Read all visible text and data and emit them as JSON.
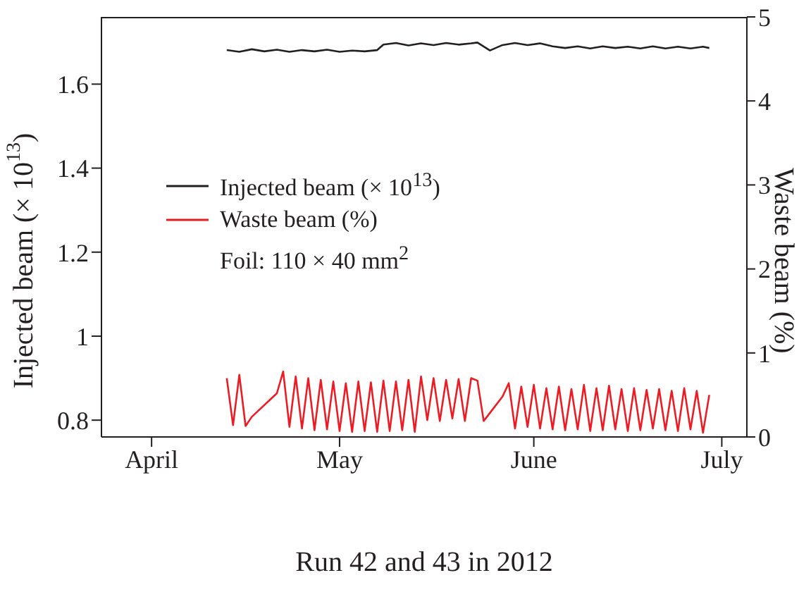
{
  "chart_data": {
    "type": "line",
    "xlabel": "Run 42 and 43 in 2012",
    "ylabel": "Injected beam (× 10$^{13}$)",
    "y2label": "Waste beam (%)",
    "xlim": [
      "2012-03-24",
      "2012-07-05"
    ],
    "xticks": [
      {
        "value": "2012-04-01",
        "label": "April"
      },
      {
        "value": "2012-05-01",
        "label": "May"
      },
      {
        "value": "2012-06-01",
        "label": "June"
      },
      {
        "value": "2012-07-01",
        "label": "July"
      }
    ],
    "ylim": [
      0.76,
      1.76
    ],
    "yticks": [
      0.8,
      1,
      1.2,
      1.4,
      1.6
    ],
    "y2lim": [
      0,
      5
    ],
    "y2ticks": [
      0,
      1,
      2,
      3,
      4,
      5
    ],
    "legend": "left",
    "marker": "none",
    "line_style": "solid",
    "annotations": [
      "Foil: 110 × 40 mm$^{2}$"
    ],
    "series": [
      {
        "name": "Injected beam (× 10$^{13}$)",
        "color": "#231f20",
        "x": [
          "2012-04-13",
          "2012-04-15",
          "2012-04-17",
          "2012-04-19",
          "2012-04-21",
          "2012-04-23",
          "2012-04-25",
          "2012-04-27",
          "2012-04-29",
          "2012-05-01",
          "2012-05-03",
          "2012-05-05",
          "2012-05-07",
          "2012-05-08",
          "2012-05-10",
          "2012-05-12",
          "2012-05-14",
          "2012-05-16",
          "2012-05-18",
          "2012-05-20",
          "2012-05-22",
          "2012-05-23",
          "2012-05-25",
          "2012-05-27",
          "2012-05-29",
          "2012-05-31",
          "2012-06-02",
          "2012-06-04",
          "2012-06-06",
          "2012-06-08",
          "2012-06-10",
          "2012-06-12",
          "2012-06-14",
          "2012-06-16",
          "2012-06-18",
          "2012-06-20",
          "2012-06-22",
          "2012-06-24",
          "2012-06-26",
          "2012-06-28",
          "2012-06-29"
        ],
        "values": [
          1.681,
          1.677,
          1.683,
          1.678,
          1.682,
          1.677,
          1.681,
          1.678,
          1.682,
          1.677,
          1.68,
          1.678,
          1.681,
          1.694,
          1.698,
          1.692,
          1.697,
          1.693,
          1.698,
          1.694,
          1.697,
          1.699,
          1.68,
          1.693,
          1.698,
          1.693,
          1.697,
          1.69,
          1.686,
          1.69,
          1.685,
          1.69,
          1.686,
          1.689,
          1.685,
          1.69,
          1.685,
          1.689,
          1.685,
          1.689,
          1.686
        ]
      },
      {
        "name": "Waste beam (%)",
        "color": "#ed1c24",
        "axis": "y2",
        "x": [
          "2012-04-13",
          "2012-04-14",
          "2012-04-15",
          "2012-04-16",
          "2012-04-17",
          "2012-04-21",
          "2012-04-22",
          "2012-04-23",
          "2012-04-24",
          "2012-04-25",
          "2012-04-26",
          "2012-04-27",
          "2012-04-28",
          "2012-04-29",
          "2012-04-30",
          "2012-05-01",
          "2012-05-02",
          "2012-05-03",
          "2012-05-04",
          "2012-05-05",
          "2012-05-06",
          "2012-05-07",
          "2012-05-08",
          "2012-05-09",
          "2012-05-10",
          "2012-05-11",
          "2012-05-12",
          "2012-05-13",
          "2012-05-14",
          "2012-05-15",
          "2012-05-16",
          "2012-05-17",
          "2012-05-18",
          "2012-05-19",
          "2012-05-20",
          "2012-05-21",
          "2012-05-22",
          "2012-05-23",
          "2012-05-24",
          "2012-05-27",
          "2012-05-28",
          "2012-05-29",
          "2012-05-30",
          "2012-05-31",
          "2012-06-01",
          "2012-06-02",
          "2012-06-03",
          "2012-06-04",
          "2012-06-05",
          "2012-06-06",
          "2012-06-07",
          "2012-06-08",
          "2012-06-09",
          "2012-06-10",
          "2012-06-11",
          "2012-06-12",
          "2012-06-13",
          "2012-06-14",
          "2012-06-15",
          "2012-06-16",
          "2012-06-17",
          "2012-06-18",
          "2012-06-19",
          "2012-06-20",
          "2012-06-21",
          "2012-06-22",
          "2012-06-23",
          "2012-06-24",
          "2012-06-25",
          "2012-06-26",
          "2012-06-27",
          "2012-06-28",
          "2012-06-29"
        ],
        "values": [
          0.7,
          0.14,
          0.74,
          0.13,
          0.24,
          0.52,
          0.78,
          0.12,
          0.72,
          0.1,
          0.7,
          0.08,
          0.68,
          0.09,
          0.66,
          0.07,
          0.64,
          0.06,
          0.66,
          0.07,
          0.65,
          0.06,
          0.67,
          0.07,
          0.66,
          0.08,
          0.68,
          0.06,
          0.72,
          0.2,
          0.7,
          0.19,
          0.68,
          0.22,
          0.69,
          0.19,
          0.7,
          0.67,
          0.19,
          0.48,
          0.64,
          0.1,
          0.6,
          0.12,
          0.62,
          0.1,
          0.58,
          0.09,
          0.6,
          0.08,
          0.57,
          0.09,
          0.62,
          0.07,
          0.58,
          0.08,
          0.61,
          0.09,
          0.57,
          0.07,
          0.58,
          0.08,
          0.56,
          0.1,
          0.57,
          0.08,
          0.55,
          0.07,
          0.58,
          0.09,
          0.55,
          0.05,
          0.5
        ]
      }
    ]
  }
}
